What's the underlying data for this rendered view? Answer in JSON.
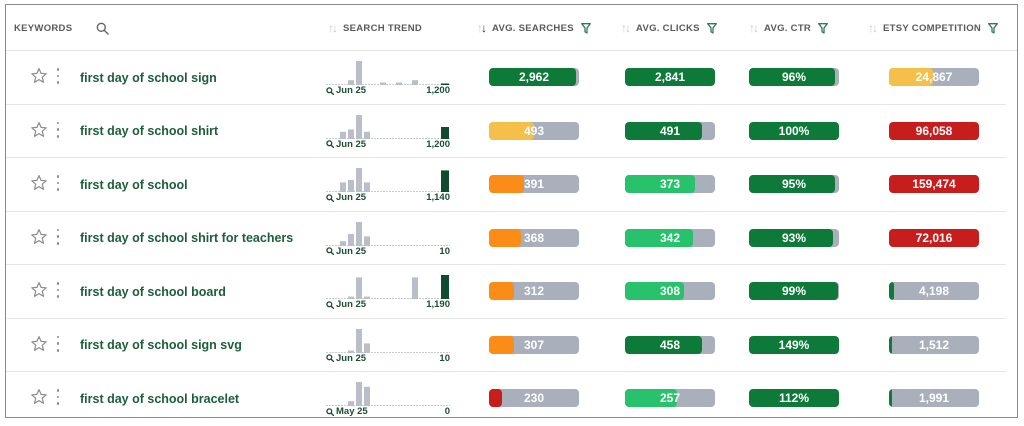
{
  "columns": {
    "keywords": "KEYWORDS",
    "search_trend": "SEARCH TREND",
    "avg_searches": "AVG. SEARCHES",
    "avg_clicks": "AVG. CLICKS",
    "avg_ctr": "AVG. CTR",
    "etsy_competition": "ETSY COMPETITION"
  },
  "colors": {
    "green_dark": "#0e7a3a",
    "green_light": "#27c26b",
    "yellow": "#f5c04a",
    "orange": "#fb8c18",
    "red": "#c81d1d",
    "gray": "#a9b0bc"
  },
  "rows": [
    {
      "keyword": "first day of school sign",
      "trend_date": "Jun 25",
      "trend_value": "1,200",
      "trend_bars": [
        0,
        0,
        0.2,
        1,
        0,
        0,
        0.1,
        0,
        0.1,
        0,
        0.2,
        0.05
      ],
      "searches": {
        "label": "2,962",
        "fill": 0.97,
        "color": "green_dark"
      },
      "clicks": {
        "label": "2,841",
        "fill": 1.0,
        "color": "green_dark"
      },
      "ctr": {
        "label": "96%",
        "fill": 0.96,
        "color": "green_dark"
      },
      "competition": {
        "label": "24,867",
        "fill": 0.49,
        "color": "yellow"
      }
    },
    {
      "keyword": "first day of school shirt",
      "trend_date": "Jun 25",
      "trend_value": "1,200",
      "trend_bars": [
        0,
        0.3,
        0.4,
        1,
        0.3,
        0,
        0,
        0,
        0,
        0,
        0,
        0.5
      ],
      "searches": {
        "label": "493",
        "fill": 0.5,
        "color": "yellow"
      },
      "clicks": {
        "label": "491",
        "fill": 0.86,
        "color": "green_dark"
      },
      "ctr": {
        "label": "100%",
        "fill": 1.0,
        "color": "green_dark"
      },
      "competition": {
        "label": "96,058",
        "fill": 1.0,
        "color": "red"
      }
    },
    {
      "keyword": "first day of school",
      "trend_date": "Jun 25",
      "trend_value": "1,140",
      "trend_bars": [
        0,
        0.4,
        0.5,
        1,
        0.4,
        0,
        0,
        0,
        0,
        0,
        0,
        0.9
      ],
      "searches": {
        "label": "391",
        "fill": 0.39,
        "color": "orange"
      },
      "clicks": {
        "label": "373",
        "fill": 0.78,
        "color": "green_light"
      },
      "ctr": {
        "label": "95%",
        "fill": 0.95,
        "color": "green_dark"
      },
      "competition": {
        "label": "159,474",
        "fill": 1.0,
        "color": "red"
      }
    },
    {
      "keyword": "first day of school shirt for teachers",
      "trend_date": "Jun 25",
      "trend_value": "10",
      "trend_bars": [
        0,
        0.2,
        0.5,
        1,
        0.4,
        0,
        0,
        0,
        0,
        0,
        0,
        0
      ],
      "searches": {
        "label": "368",
        "fill": 0.36,
        "color": "orange"
      },
      "clicks": {
        "label": "342",
        "fill": 0.76,
        "color": "green_light"
      },
      "ctr": {
        "label": "93%",
        "fill": 0.93,
        "color": "green_dark"
      },
      "competition": {
        "label": "72,016",
        "fill": 1.0,
        "color": "red"
      }
    },
    {
      "keyword": "first day of school board",
      "trend_date": "Jun 25",
      "trend_value": "1,190",
      "trend_bars": [
        0,
        0,
        0.1,
        0.9,
        0.1,
        0,
        0,
        0,
        0,
        0,
        0.9,
        1
      ],
      "searches": {
        "label": "312",
        "fill": 0.28,
        "color": "orange"
      },
      "clicks": {
        "label": "308",
        "fill": 0.66,
        "color": "green_light"
      },
      "ctr": {
        "label": "99%",
        "fill": 0.99,
        "color": "green_dark"
      },
      "competition": {
        "label": "4,198",
        "fill": 0.06,
        "color": "green_dark"
      }
    },
    {
      "keyword": "first day of school sign svg",
      "trend_date": "Jun 25",
      "trend_value": "10",
      "trend_bars": [
        0,
        0,
        0.1,
        1,
        0.4,
        0,
        0,
        0,
        0,
        0,
        0,
        0
      ],
      "searches": {
        "label": "307",
        "fill": 0.28,
        "color": "orange"
      },
      "clicks": {
        "label": "458",
        "fill": 0.85,
        "color": "green_dark"
      },
      "ctr": {
        "label": "149%",
        "fill": 1.0,
        "color": "green_dark"
      },
      "competition": {
        "label": "1,512",
        "fill": 0.03,
        "color": "green_dark"
      }
    },
    {
      "keyword": "first day of school bracelet",
      "trend_date": "May 25",
      "trend_value": "0",
      "trend_bars": [
        0,
        0,
        0.2,
        1,
        0.8,
        0,
        0,
        0,
        0,
        0,
        0,
        0
      ],
      "searches": {
        "label": "230",
        "fill": 0.14,
        "color": "red"
      },
      "clicks": {
        "label": "257",
        "fill": 0.58,
        "color": "green_light"
      },
      "ctr": {
        "label": "112%",
        "fill": 1.0,
        "color": "green_dark"
      },
      "competition": {
        "label": "1,991",
        "fill": 0.03,
        "color": "green_dark"
      }
    }
  ]
}
